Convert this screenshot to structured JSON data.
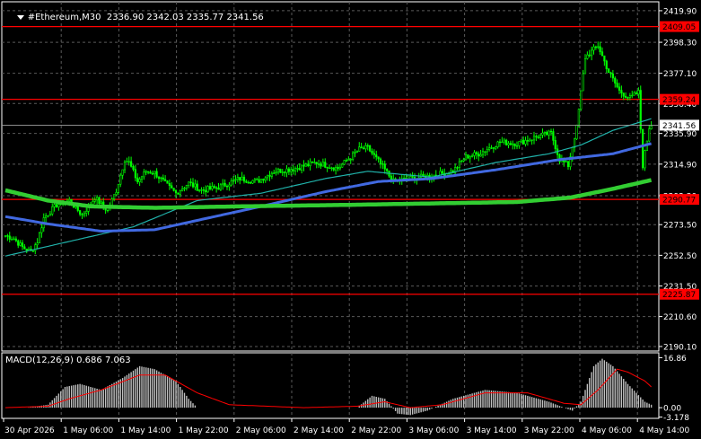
{
  "header": {
    "symbol_tf": "#Ethereum,M30",
    "ohlc": "2336.90 2342.03 2335.77 2341.56"
  },
  "macd_header": {
    "label": "MACD(12,26,9)",
    "values": "0.686 7.063"
  },
  "colors": {
    "background": "#000000",
    "grid": "#5a5a5a",
    "candles": "#00ff00",
    "hline": "#ff0000",
    "ma_fast": "#20b2aa",
    "ma_mid": "#4169e1",
    "ma_slow": "#32cd32",
    "macd_hist": "#c0c0c0",
    "macd_signal": "#ff0000"
  },
  "chart_data": {
    "type": "candlestick",
    "price_axis": {
      "ticks": [
        "2419.90",
        "2398.30",
        "2377.10",
        "2356.40",
        "2335.90",
        "2314.90",
        "2293.30",
        "2273.50",
        "2252.50",
        "2231.50",
        "2210.60",
        "2190.10"
      ],
      "ylim": [
        2187,
        2426
      ]
    },
    "time_axis": {
      "ticks": [
        "30 Apr 2026",
        "1 May 06:00",
        "1 May 14:00",
        "1 May 22:00",
        "2 May 06:00",
        "2 May 14:00",
        "2 May 22:00",
        "3 May 06:00",
        "3 May 14:00",
        "3 May 22:00",
        "4 May 06:00",
        "4 May 14:00"
      ]
    },
    "horizontal_levels": [
      {
        "value": 2409.05,
        "label": "2409.05"
      },
      {
        "value": 2359.24,
        "label": "2359.24"
      },
      {
        "value": 2290.77,
        "label": "2290.77"
      },
      {
        "value": 2225.87,
        "label": "2225.87"
      }
    ],
    "current_price": {
      "value": 2341.56,
      "label": "2341.56"
    },
    "close_anchors": [
      [
        0,
        2266
      ],
      [
        4,
        2264
      ],
      [
        8,
        2258
      ],
      [
        12,
        2255
      ],
      [
        15,
        2262
      ],
      [
        18,
        2278
      ],
      [
        24,
        2287
      ],
      [
        30,
        2290
      ],
      [
        36,
        2280
      ],
      [
        42,
        2292
      ],
      [
        48,
        2283
      ],
      [
        52,
        2297
      ],
      [
        56,
        2318
      ],
      [
        58,
        2316
      ],
      [
        62,
        2303
      ],
      [
        66,
        2310
      ],
      [
        70,
        2309
      ],
      [
        76,
        2300
      ],
      [
        80,
        2295
      ],
      [
        86,
        2302
      ],
      [
        92,
        2297
      ],
      [
        100,
        2299
      ],
      [
        110,
        2305
      ],
      [
        118,
        2303
      ],
      [
        126,
        2310
      ],
      [
        136,
        2312
      ],
      [
        146,
        2316
      ],
      [
        156,
        2312
      ],
      [
        166,
        2325
      ],
      [
        170,
        2326
      ],
      [
        176,
        2315
      ],
      [
        182,
        2303
      ],
      [
        190,
        2305
      ],
      [
        200,
        2307
      ],
      [
        210,
        2310
      ],
      [
        216,
        2320
      ],
      [
        222,
        2322
      ],
      [
        232,
        2330
      ],
      [
        240,
        2329
      ],
      [
        250,
        2334
      ],
      [
        256,
        2336
      ],
      [
        260,
        2318
      ],
      [
        264,
        2314
      ],
      [
        268,
        2340
      ],
      [
        272,
        2388
      ],
      [
        278,
        2396
      ],
      [
        283,
        2378
      ],
      [
        288,
        2365
      ],
      [
        293,
        2360
      ],
      [
        297,
        2364
      ],
      [
        299,
        2314
      ],
      [
        302,
        2340
      ],
      [
        303,
        2342
      ]
    ],
    "ma_fast_anchors": [
      [
        0,
        2252
      ],
      [
        30,
        2262
      ],
      [
        60,
        2272
      ],
      [
        90,
        2290
      ],
      [
        120,
        2295
      ],
      [
        150,
        2305
      ],
      [
        170,
        2310
      ],
      [
        200,
        2306
      ],
      [
        230,
        2316
      ],
      [
        255,
        2322
      ],
      [
        270,
        2328
      ],
      [
        285,
        2338
      ],
      [
        303,
        2346
      ]
    ],
    "ma_mid_anchors": [
      [
        0,
        2279
      ],
      [
        20,
        2274
      ],
      [
        45,
        2269
      ],
      [
        70,
        2270
      ],
      [
        95,
        2278
      ],
      [
        120,
        2286
      ],
      [
        150,
        2296
      ],
      [
        175,
        2303
      ],
      [
        200,
        2305
      ],
      [
        230,
        2311
      ],
      [
        260,
        2318
      ],
      [
        285,
        2322
      ],
      [
        303,
        2329
      ]
    ],
    "ma_slow_anchors": [
      [
        0,
        2297
      ],
      [
        20,
        2290
      ],
      [
        40,
        2286
      ],
      [
        70,
        2285
      ],
      [
        110,
        2286
      ],
      [
        160,
        2287
      ],
      [
        200,
        2288
      ],
      [
        240,
        2289
      ],
      [
        265,
        2292
      ],
      [
        285,
        2298
      ],
      [
        303,
        2304
      ]
    ],
    "macd": {
      "ticks": [
        "16.86",
        "0.00",
        "-3.178"
      ],
      "ylim": [
        -3.6,
        18.5
      ],
      "hist_anchors": [
        [
          0,
          0
        ],
        [
          10,
          0
        ],
        [
          20,
          1
        ],
        [
          28,
          7
        ],
        [
          35,
          8
        ],
        [
          45,
          6
        ],
        [
          55,
          10
        ],
        [
          63,
          14
        ],
        [
          70,
          13
        ],
        [
          80,
          9
        ],
        [
          86,
          3
        ],
        [
          90,
          0
        ],
        [
          110,
          0
        ],
        [
          140,
          0
        ],
        [
          165,
          0
        ],
        [
          172,
          4
        ],
        [
          178,
          3
        ],
        [
          184,
          -2
        ],
        [
          190,
          -2.5
        ],
        [
          198,
          -1
        ],
        [
          210,
          3
        ],
        [
          225,
          6
        ],
        [
          240,
          5
        ],
        [
          255,
          2
        ],
        [
          262,
          0
        ],
        [
          266,
          -1
        ],
        [
          270,
          2
        ],
        [
          276,
          14
        ],
        [
          280,
          16.5
        ],
        [
          285,
          14
        ],
        [
          292,
          8
        ],
        [
          300,
          2
        ],
        [
          303,
          1
        ]
      ],
      "signal_anchors": [
        [
          0,
          0
        ],
        [
          20,
          0.5
        ],
        [
          30,
          3
        ],
        [
          45,
          6
        ],
        [
          63,
          11
        ],
        [
          75,
          11
        ],
        [
          90,
          5
        ],
        [
          105,
          1
        ],
        [
          140,
          0
        ],
        [
          165,
          0.5
        ],
        [
          178,
          2
        ],
        [
          190,
          0
        ],
        [
          205,
          1
        ],
        [
          225,
          5
        ],
        [
          245,
          5
        ],
        [
          262,
          1.5
        ],
        [
          270,
          1
        ],
        [
          278,
          6
        ],
        [
          287,
          13
        ],
        [
          292,
          12
        ],
        [
          300,
          9
        ],
        [
          303,
          7
        ]
      ]
    }
  }
}
